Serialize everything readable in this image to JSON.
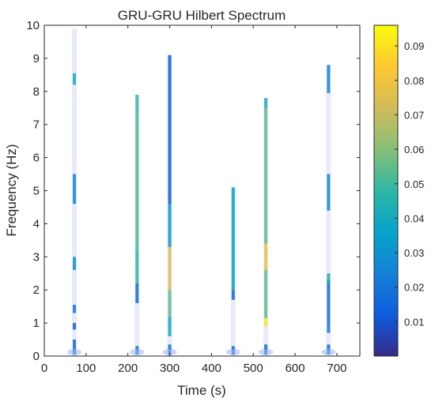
{
  "chart_data": {
    "type": "heatmap",
    "title": "GRU-GRU Hilbert Spectrum",
    "xlabel": "Time (s)",
    "ylabel": "Frequency (Hz)",
    "xlim": [
      0,
      755
    ],
    "ylim": [
      0,
      10
    ],
    "xticks": [
      0,
      100,
      200,
      300,
      400,
      500,
      600,
      700
    ],
    "yticks": [
      0,
      1,
      2,
      3,
      4,
      5,
      6,
      7,
      8,
      9,
      10
    ],
    "colorbar": {
      "colormap": "parula",
      "range": [
        0,
        0.096
      ],
      "ticks": [
        0.01,
        0.02,
        0.03,
        0.04,
        0.05,
        0.06,
        0.07,
        0.08,
        0.09
      ]
    },
    "grid": false,
    "series": [
      {
        "x": 72,
        "fmax": 9.9,
        "segments": [
          [
            0.05,
            0.5,
            0.018
          ],
          [
            0.8,
            1.0,
            0.014
          ],
          [
            1.3,
            1.55,
            0.02
          ],
          [
            2.6,
            3.0,
            0.03
          ],
          [
            4.6,
            5.5,
            0.026
          ],
          [
            8.2,
            8.55,
            0.04
          ]
        ]
      },
      {
        "x": 222,
        "fmax": 7.9,
        "segments": [
          [
            0.05,
            0.3,
            0.018
          ],
          [
            1.6,
            2.2,
            0.018
          ],
          [
            2.2,
            3.2,
            0.048
          ],
          [
            3.2,
            7.3,
            0.052
          ],
          [
            7.3,
            7.9,
            0.05
          ]
        ]
      },
      {
        "x": 300,
        "fmax": 9.1,
        "segments": [
          [
            0.05,
            0.35,
            0.018
          ],
          [
            0.6,
            1.2,
            0.04
          ],
          [
            1.2,
            2.0,
            0.055
          ],
          [
            2.0,
            3.3,
            0.075
          ],
          [
            3.3,
            4.6,
            0.032
          ],
          [
            4.6,
            9.1,
            0.012
          ]
        ]
      },
      {
        "x": 452,
        "fmax": 5.1,
        "segments": [
          [
            0.05,
            0.3,
            0.016
          ],
          [
            1.7,
            2.0,
            0.016
          ],
          [
            2.0,
            5.1,
            0.035
          ]
        ]
      },
      {
        "x": 530,
        "fmax": 7.8,
        "segments": [
          [
            0.05,
            0.35,
            0.018
          ],
          [
            0.9,
            1.15,
            0.092
          ],
          [
            1.15,
            2.6,
            0.055
          ],
          [
            2.6,
            3.4,
            0.078
          ],
          [
            3.4,
            7.5,
            0.055
          ],
          [
            7.5,
            7.8,
            0.042
          ]
        ]
      },
      {
        "x": 680,
        "fmax": 8.8,
        "segments": [
          [
            0.05,
            0.35,
            0.018
          ],
          [
            0.7,
            1.0,
            0.022
          ],
          [
            1.0,
            2.3,
            0.018
          ],
          [
            2.2,
            2.5,
            0.045
          ],
          [
            4.4,
            5.5,
            0.028
          ],
          [
            7.95,
            8.8,
            0.026
          ]
        ]
      }
    ]
  }
}
